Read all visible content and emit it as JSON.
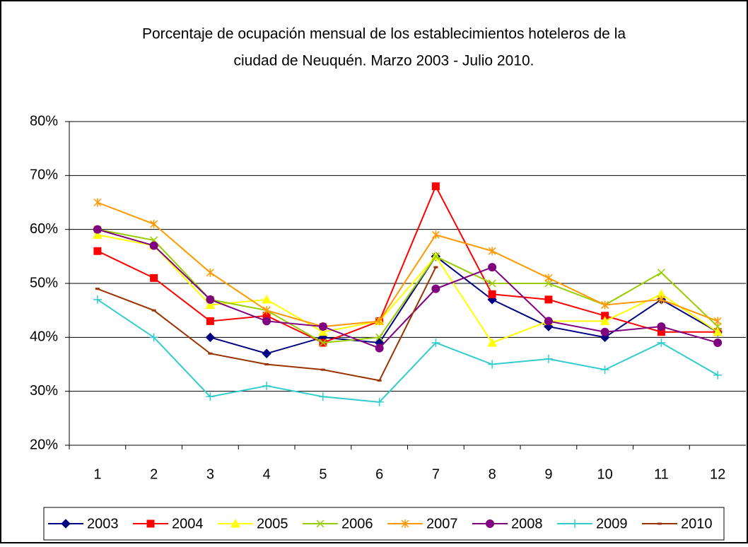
{
  "chart_data": {
    "type": "line",
    "title": "Porcentaje de ocupación mensual de los establecimientos hoteleros de la",
    "subtitle": "ciudad de Neuquén. Marzo 2003 - Julio 2010.",
    "categories": [
      "1",
      "2",
      "3",
      "4",
      "5",
      "6",
      "7",
      "8",
      "9",
      "10",
      "11",
      "12"
    ],
    "ylim": [
      20,
      80
    ],
    "yticks": [
      {
        "value": 20,
        "label": "20%"
      },
      {
        "value": 30,
        "label": "30%"
      },
      {
        "value": 40,
        "label": "40%"
      },
      {
        "value": 50,
        "label": "50%"
      },
      {
        "value": 60,
        "label": "60%"
      },
      {
        "value": 70,
        "label": "70%"
      },
      {
        "value": 80,
        "label": "80%"
      }
    ],
    "grid": true,
    "legend": "bottom",
    "series": [
      {
        "name": "2003",
        "color": "#000080",
        "marker": "diamond",
        "values": [
          null,
          null,
          40,
          37,
          40,
          39,
          55,
          47,
          42,
          40,
          47,
          41
        ]
      },
      {
        "name": "2004",
        "color": "#ff0000",
        "marker": "square",
        "values": [
          56,
          51,
          43,
          44,
          39,
          43,
          68,
          48,
          47,
          44,
          41,
          41
        ]
      },
      {
        "name": "2005",
        "color": "#ffff00",
        "marker": "triangle",
        "values": [
          59,
          57,
          46,
          47,
          41,
          43,
          55,
          39,
          43,
          43,
          48,
          41
        ]
      },
      {
        "name": "2006",
        "color": "#99cc00",
        "marker": "x",
        "values": [
          60,
          58,
          47,
          45,
          39,
          40,
          55,
          50,
          50,
          46,
          52,
          42
        ]
      },
      {
        "name": "2007",
        "color": "#ff9900",
        "marker": "star",
        "values": [
          65,
          61,
          52,
          45,
          42,
          43,
          59,
          56,
          51,
          46,
          47,
          43
        ]
      },
      {
        "name": "2008",
        "color": "#800080",
        "marker": "circle",
        "values": [
          60,
          57,
          47,
          43,
          42,
          38,
          49,
          53,
          43,
          41,
          42,
          39
        ]
      },
      {
        "name": "2009",
        "color": "#33cccc",
        "marker": "plus",
        "values": [
          47,
          40,
          29,
          31,
          29,
          28,
          39,
          35,
          36,
          34,
          39,
          33
        ]
      },
      {
        "name": "2010",
        "color": "#993300",
        "marker": "dash",
        "values": [
          49,
          45,
          37,
          35,
          34,
          32,
          53,
          null,
          null,
          null,
          null,
          null
        ]
      }
    ]
  }
}
